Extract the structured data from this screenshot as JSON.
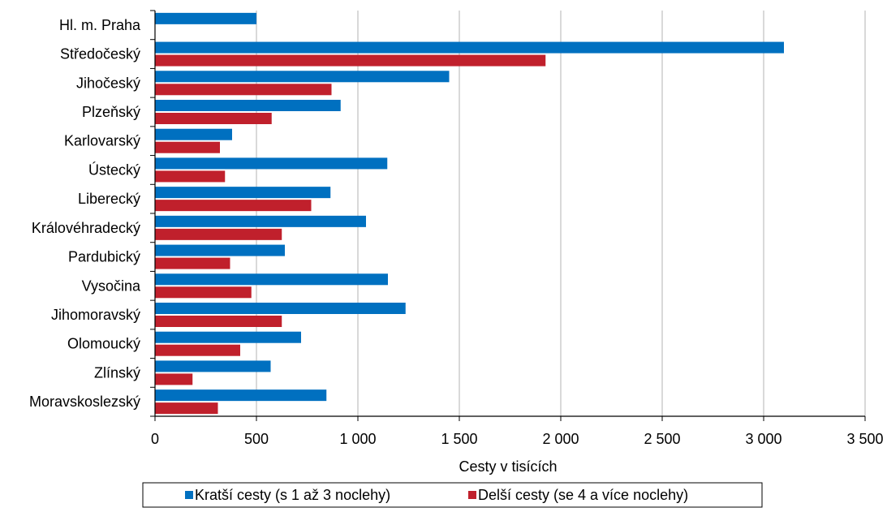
{
  "chart_data": {
    "type": "bar",
    "orientation": "horizontal",
    "categories": [
      "Hl. m. Praha",
      "Středočeský",
      "Jihočeský",
      "Plzeňský",
      "Karlovarský",
      "Ústecký",
      "Liberecký",
      "Královéhradecký",
      "Pardubický",
      "Vysočina",
      "Jihomoravský",
      "Olomoucký",
      "Zlínský",
      "Moravskoslezský"
    ],
    "series": [
      {
        "name": "Kratší cesty (s 1 až 3 noclehy)",
        "color": "#0070C0",
        "values": [
          500,
          3100,
          1450,
          915,
          380,
          1145,
          865,
          1040,
          640,
          1148,
          1235,
          720,
          570,
          845
        ]
      },
      {
        "name": "Delší cesty (se 4 a více noclehy)",
        "color": "#C0202C",
        "values": [
          0,
          1925,
          870,
          575,
          320,
          345,
          770,
          625,
          370,
          475,
          625,
          420,
          185,
          310
        ]
      }
    ],
    "xlim": [
      0,
      3500
    ],
    "xticks": [
      0,
      500,
      1000,
      1500,
      2000,
      2500,
      3000,
      3500
    ],
    "xtick_labels": [
      "0",
      "500",
      "1 000",
      "1 500",
      "2 000",
      "2 500",
      "3 000",
      "3 500"
    ],
    "xlabel": "Cesty v tisících",
    "gridlines": "vertical",
    "legend_position": "bottom"
  }
}
